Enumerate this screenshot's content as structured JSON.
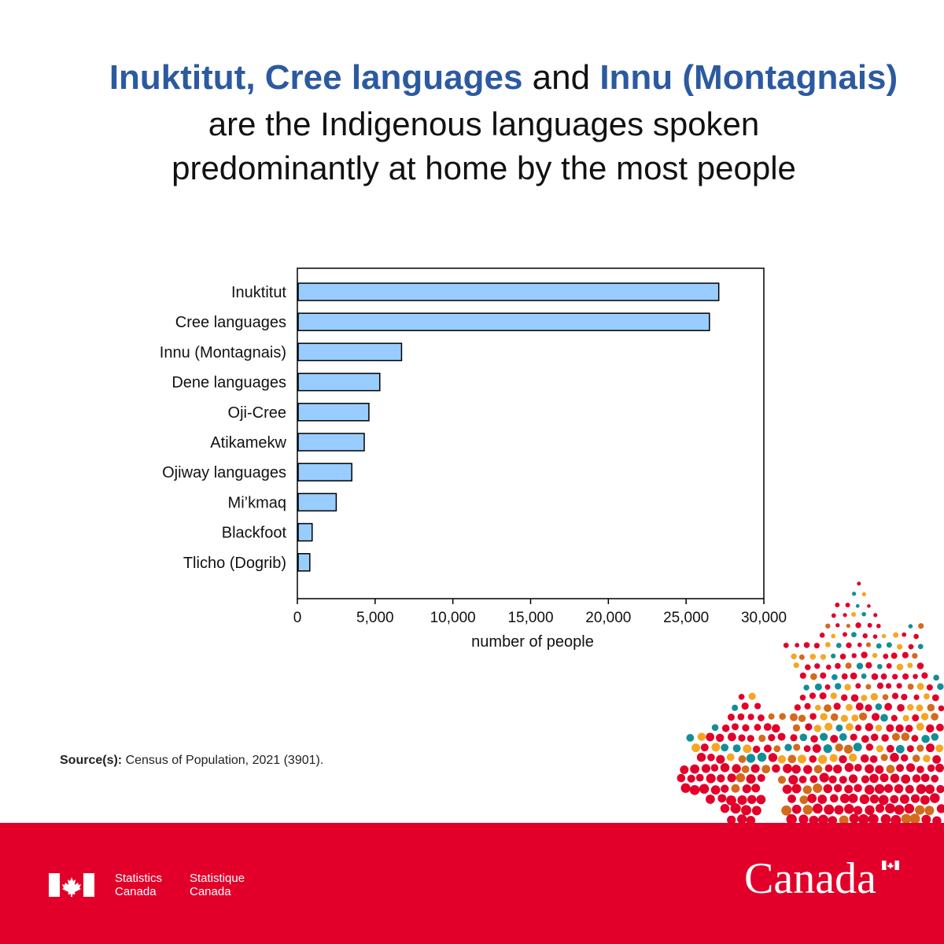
{
  "title": {
    "part1": "Inuktitut, Cree languages",
    "part2": " and ",
    "part3": "Innu (Montagnais)",
    "line2": "are the Indigenous languages spoken",
    "line3": "predominantly at home by the most people"
  },
  "chart_data": {
    "type": "bar",
    "orientation": "horizontal",
    "categories": [
      "Inuktitut",
      "Cree languages",
      "Innu (Montagnais)",
      "Dene languages",
      "Oji-Cree",
      "Atikamekw",
      "Ojiway languages",
      "Mi’kmaq",
      "Blackfoot",
      "Tlicho (Dogrib)"
    ],
    "values": [
      27100,
      26500,
      6700,
      5300,
      4600,
      4300,
      3500,
      2500,
      950,
      800
    ],
    "xlabel": "number of people",
    "xlim": [
      0,
      30000
    ],
    "xticks": [
      "0",
      "5,000",
      "10,000",
      "15,000",
      "20,000",
      "25,000",
      "30,000"
    ],
    "bar_color": "#99ccff",
    "grid": false
  },
  "source": {
    "label": "Source(s):",
    "text": " Census of Population, 2021 (3901)."
  },
  "footer": {
    "agency_en_1": "Statistics",
    "agency_en_2": "Canada",
    "agency_fr_1": "Statistique",
    "agency_fr_2": "Canada",
    "wordmark": "Canada"
  },
  "colors": {
    "title_blue": "#2c5aa0",
    "footer_red": "#e2002a"
  }
}
